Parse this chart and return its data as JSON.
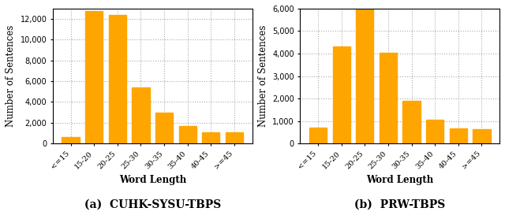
{
  "chart_a": {
    "subtitle": "(a)  CUHK-SYSU-TBPS",
    "categories": [
      "<=15",
      "15-20",
      "20-25",
      "25-30",
      "30-35",
      "35-40",
      "40-45",
      ">=45"
    ],
    "values": [
      600,
      12800,
      12400,
      5400,
      3000,
      1700,
      1100,
      1100
    ],
    "ylim": [
      0,
      13000
    ],
    "yticks": [
      0,
      2000,
      4000,
      6000,
      8000,
      10000,
      12000
    ],
    "ylabel": "Number of Sentences",
    "xlabel": "Word Length"
  },
  "chart_b": {
    "subtitle": "(b)  PRW-TBPS",
    "categories": [
      "<=15",
      "15-20",
      "20-25",
      "25-30",
      "30-35",
      "35-40",
      "40-45",
      ">=45"
    ],
    "values": [
      700,
      4300,
      6000,
      4050,
      1900,
      1050,
      680,
      650
    ],
    "ylim": [
      0,
      6000
    ],
    "yticks": [
      0,
      1000,
      2000,
      3000,
      4000,
      5000,
      6000
    ],
    "ylabel": "Number of Sentences",
    "xlabel": "Word Length"
  },
  "bar_color": "#FFA500",
  "bar_edgecolor": "#FFA500",
  "background_color": "#ffffff",
  "grid_color": "#aaaaaa",
  "subtitle_fontsize": 10,
  "label_fontsize": 8.5,
  "tick_fontsize": 7
}
